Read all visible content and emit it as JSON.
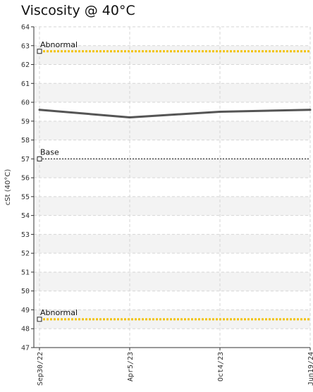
{
  "chart_data": {
    "type": "line",
    "title": "Viscosity @ 40°C",
    "ylabel": "cSt (40°C)",
    "xlabel": "",
    "ylim": [
      47,
      64
    ],
    "yticks": [
      47,
      48,
      49,
      50,
      51,
      52,
      53,
      54,
      55,
      56,
      57,
      58,
      59,
      60,
      61,
      62,
      63,
      64
    ],
    "x_ticks": [
      "Sep30/22",
      "Apr5/23",
      "Oct4/23",
      "Jun19/24"
    ],
    "grid": true,
    "series": [
      {
        "x": [
          "Sep30/22",
          "Apr5/23",
          "Oct4/23",
          "Jun19/24"
        ],
        "values": [
          59.6,
          59.2,
          59.5,
          59.6
        ],
        "color": "#555555"
      }
    ],
    "reference_lines": [
      {
        "label": "Abnormal",
        "value": 62.7,
        "color": "#f2c200"
      },
      {
        "label": "Base",
        "value": 57.0,
        "color": "#333333"
      },
      {
        "label": "Abnormal",
        "value": 48.5,
        "color": "#f2c200"
      }
    ]
  }
}
